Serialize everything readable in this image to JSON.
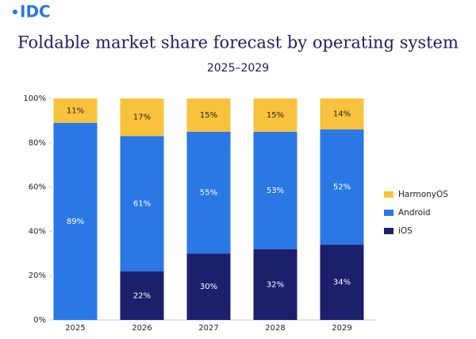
{
  "logo": "IDC",
  "chart_data": {
    "type": "stacked_bar",
    "title": "Foldable market share forecast by operating system",
    "subtitle": "2025–2029",
    "categories": [
      "2025",
      "2026",
      "2027",
      "2028",
      "2029"
    ],
    "series": [
      {
        "name": "iOS",
        "color": "#1c1f6b",
        "values": [
          0,
          22,
          30,
          32,
          34
        ],
        "value_labels": [
          null,
          "22%",
          "30%",
          "32%",
          "34%"
        ]
      },
      {
        "name": "Android",
        "color": "#2a78e4",
        "values": [
          89,
          61,
          55,
          53,
          52
        ],
        "value_labels": [
          "89%",
          "61%",
          "55%",
          "53%",
          "52%"
        ]
      },
      {
        "name": "HarmonyOS",
        "color": "#f9c23c",
        "values": [
          11,
          17,
          15,
          15,
          14
        ],
        "value_labels": [
          "11%",
          "17%",
          "15%",
          "15%",
          "14%"
        ]
      }
    ],
    "ylim": [
      0,
      100
    ],
    "yticks": [
      {
        "value": 0,
        "label": "0%"
      },
      {
        "value": 20,
        "label": "20%"
      },
      {
        "value": 40,
        "label": "40%"
      },
      {
        "value": 60,
        "label": "60%"
      },
      {
        "value": 80,
        "label": "80%"
      },
      {
        "value": 100,
        "label": "100%"
      }
    ],
    "grid": false,
    "legend": "right"
  }
}
